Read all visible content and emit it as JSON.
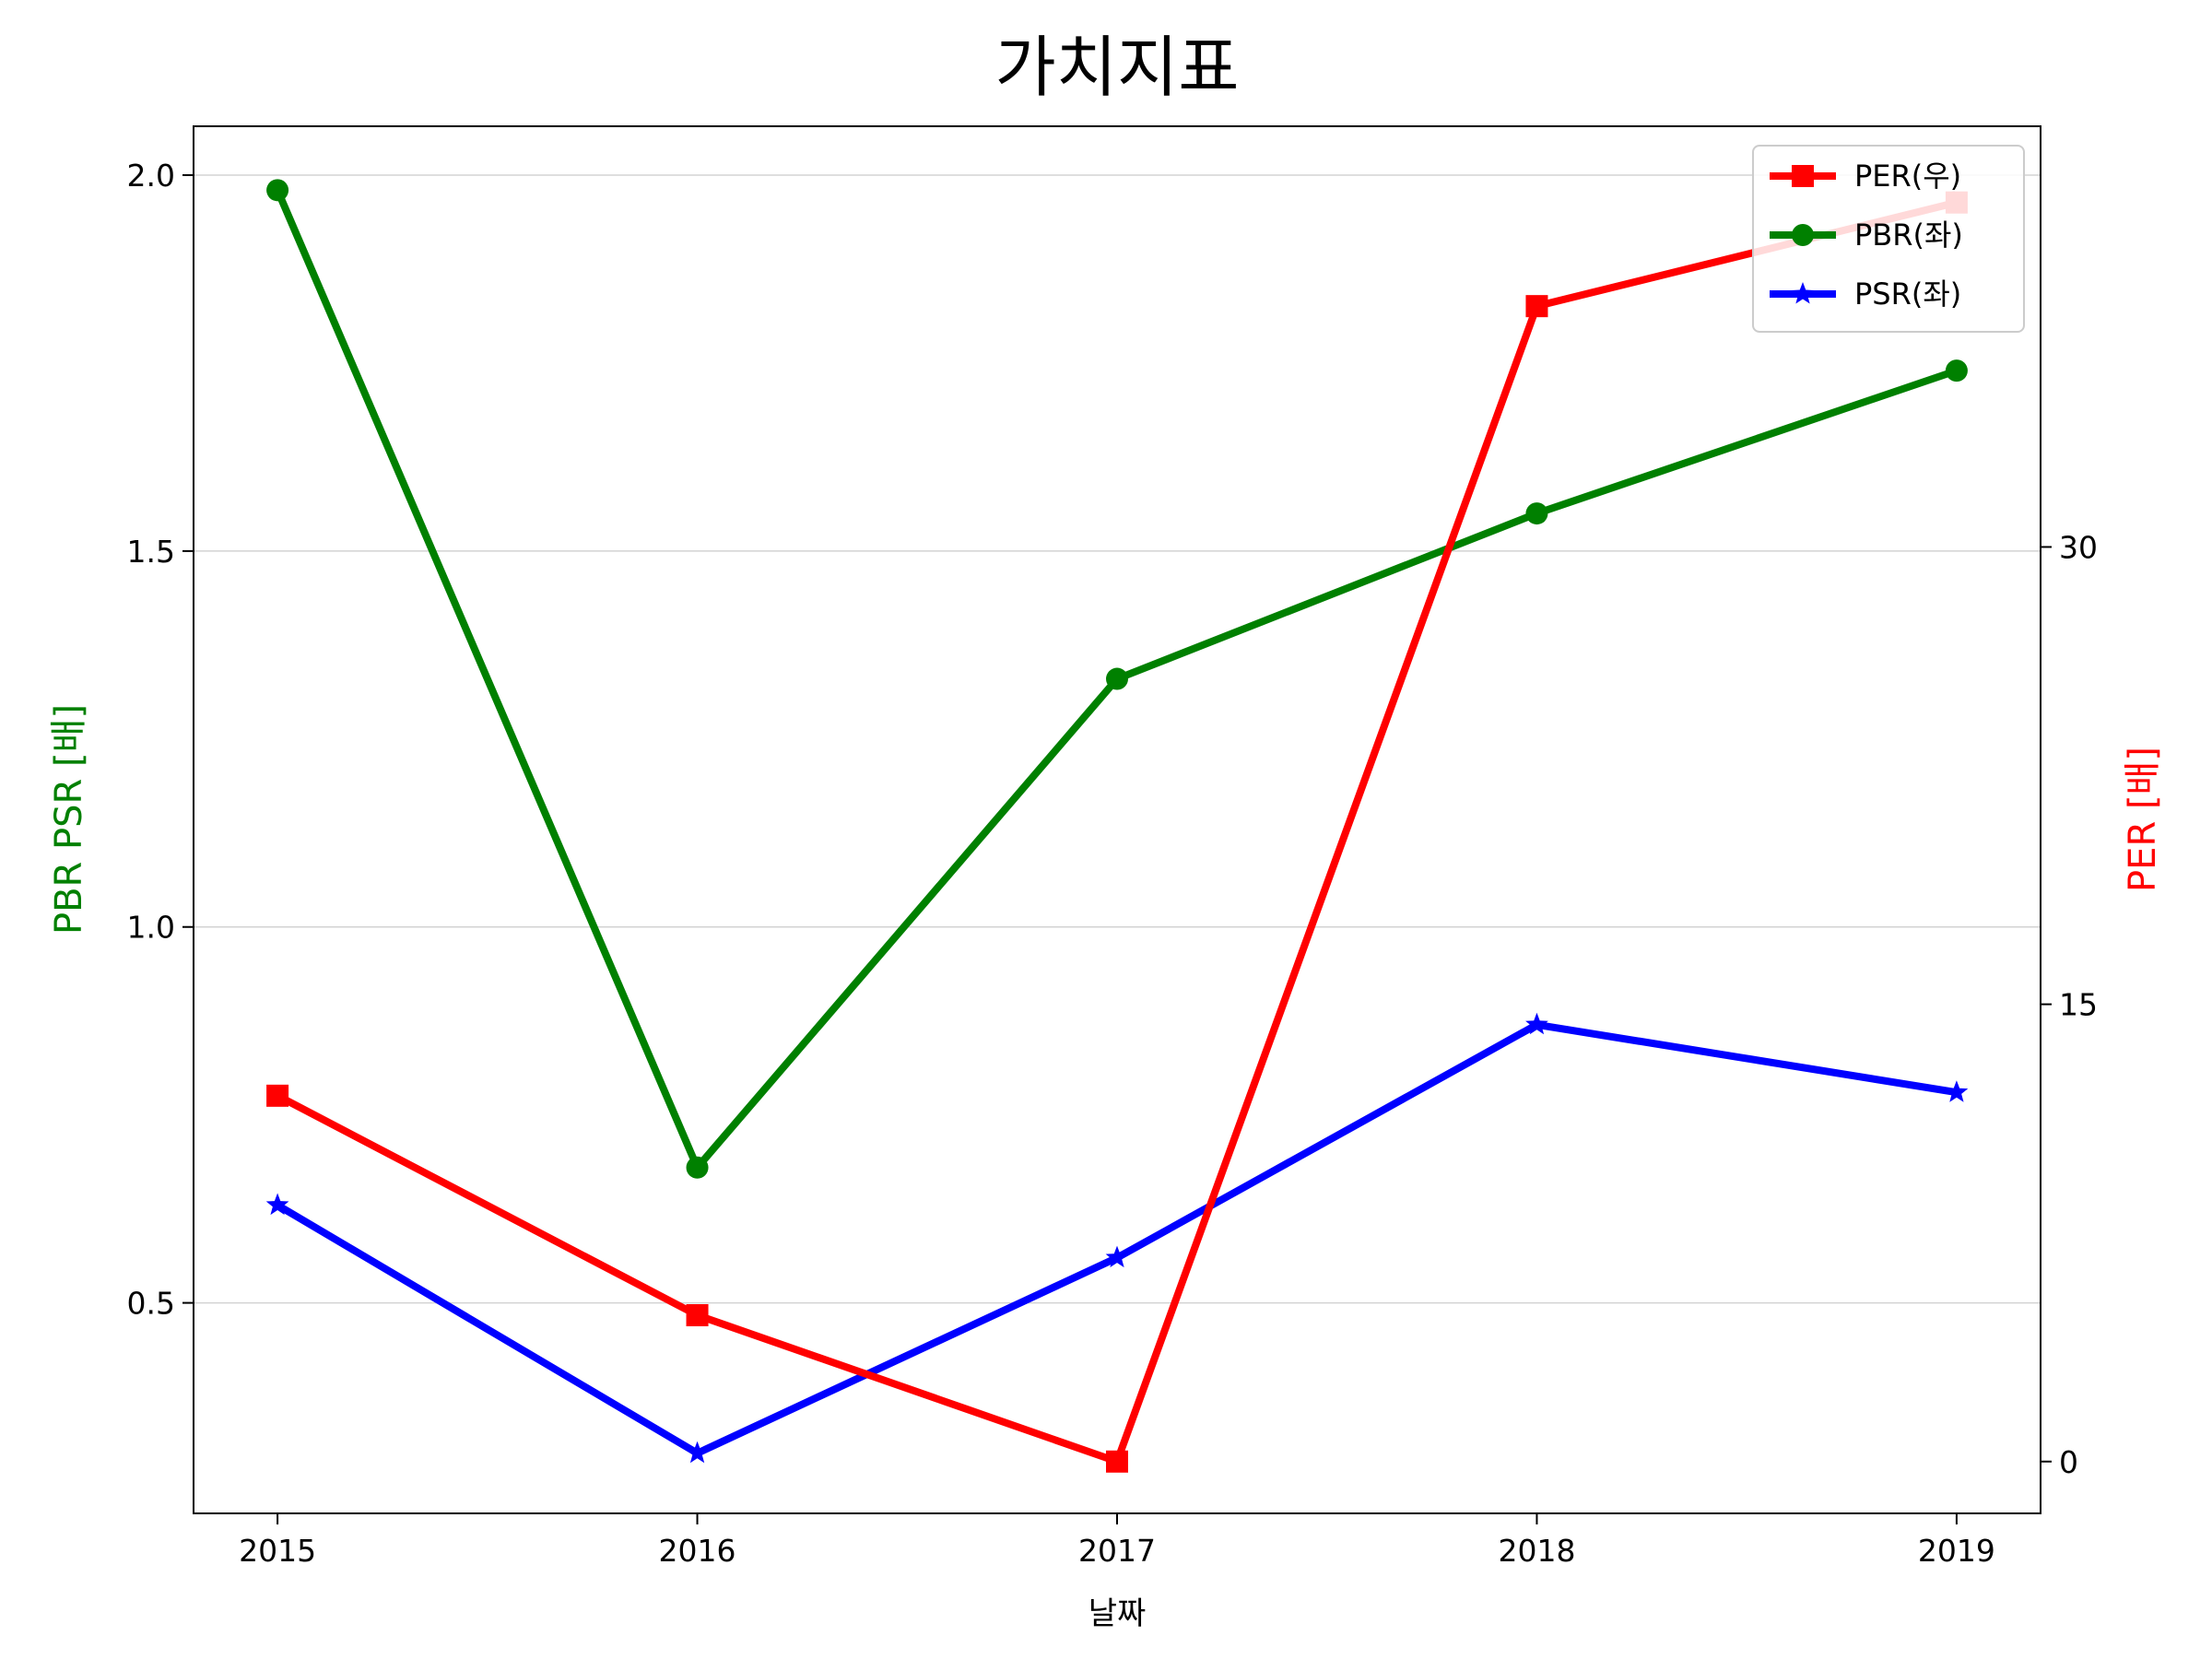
{
  "chart_data": {
    "type": "line",
    "title": "가치지표",
    "xlabel": "날짜",
    "ylabel_left": "PBR PSR [배]",
    "ylabel_right": "PER [배]",
    "x": [
      2015,
      2016,
      2017,
      2018,
      2019
    ],
    "x_tick_labels": [
      "2015",
      "2016",
      "2017",
      "2018",
      "2019"
    ],
    "xlim": [
      2014.8,
      2019.2
    ],
    "ylim_left": [
      0.22,
      2.065
    ],
    "yticks_left": [
      0.5,
      1.0,
      1.5,
      2.0
    ],
    "ytick_labels_left": [
      "0.5",
      "1.0",
      "1.5",
      "2.0"
    ],
    "ylim_right": [
      -1.7,
      43.8
    ],
    "yticks_right": [
      0,
      15,
      30
    ],
    "ytick_labels_right": [
      "0",
      "15",
      "30"
    ],
    "grid": "horizontal (left axis)",
    "legend_placement": "top-right",
    "series": [
      {
        "name": "PER(우)",
        "axis": "right",
        "color": "#ff0000",
        "marker": "square",
        "values": [
          12.0,
          4.8,
          0.0,
          37.9,
          41.3
        ]
      },
      {
        "name": "PBR(좌)",
        "axis": "left",
        "color": "#008000",
        "marker": "circle",
        "values": [
          1.98,
          0.68,
          1.33,
          1.55,
          1.74
        ]
      },
      {
        "name": "PSR(좌)",
        "axis": "left",
        "color": "#0000ff",
        "marker": "star",
        "values": [
          0.63,
          0.3,
          0.56,
          0.87,
          0.78
        ]
      }
    ]
  }
}
